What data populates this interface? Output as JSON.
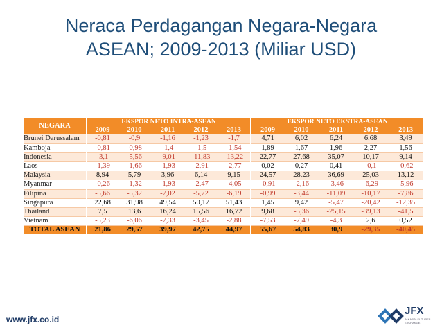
{
  "title": {
    "line1": "Neraca Perdagangan Negara-Negara",
    "line2": "ASEAN; 2009-2013 (Miliar USD)"
  },
  "table": {
    "header": {
      "negara": "NEGARA",
      "group_intra": "EKSPOR NETO INTRA-ASEAN",
      "group_extra": "EKSPOR NETO EKSTRA-ASEAN",
      "years_intra": [
        "2009",
        "2010",
        "2011",
        "2012",
        "2013"
      ],
      "years_extra": [
        "2009",
        "2010",
        "2011",
        "2012",
        "2013"
      ]
    },
    "rows": [
      {
        "country": "Brunei Darussalam",
        "intra": [
          "-0,81",
          "-0,9",
          "-1,16",
          "-1,23",
          "-1,7"
        ],
        "extra": [
          "4,71",
          "6,02",
          "6,24",
          "6,68",
          "3,49"
        ]
      },
      {
        "country": "Kamboja",
        "intra": [
          "-0,81",
          "-0,98",
          "-1,4",
          "-1,5",
          "-1,54"
        ],
        "extra": [
          "1,89",
          "1,67",
          "1,96",
          "2,27",
          "1,56"
        ]
      },
      {
        "country": "Indonesia",
        "intra": [
          "-3,1",
          "-5,56",
          "-9,01",
          "-11,83",
          "-13,22"
        ],
        "extra": [
          "22,77",
          "27,68",
          "35,07",
          "10,17",
          "9,14"
        ]
      },
      {
        "country": "Laos",
        "intra": [
          "-1,39",
          "-1,66",
          "-1,93",
          "-2,91",
          "-2,77"
        ],
        "extra": [
          "0,02",
          "0,27",
          "0,41",
          "-0,1",
          "-0,62"
        ]
      },
      {
        "country": "Malaysia",
        "intra": [
          "8,94",
          "5,79",
          "3,96",
          "6,14",
          "9,15"
        ],
        "extra": [
          "24,57",
          "28,23",
          "36,69",
          "25,03",
          "13,12"
        ]
      },
      {
        "country": "Myanmar",
        "intra": [
          "-0,26",
          "-1,32",
          "-1,93",
          "-2,47",
          "-4,05"
        ],
        "extra": [
          "-0,91",
          "-2,16",
          "-3,46",
          "-6,29",
          "-5,96"
        ]
      },
      {
        "country": "Filipina",
        "intra": [
          "-5,66",
          "-5,32",
          "-7,02",
          "-5,72",
          "-6,19"
        ],
        "extra": [
          "-0,99",
          "-3,44",
          "-11,09",
          "-10,17",
          "-7,86"
        ]
      },
      {
        "country": "Singapura",
        "intra": [
          "22,68",
          "31,98",
          "49,54",
          "50,17",
          "51,43"
        ],
        "extra": [
          "1,45",
          "9,42",
          "-5,47",
          "-20,42",
          "-12,35"
        ]
      },
      {
        "country": "Thailand",
        "intra": [
          "7,5",
          "13,6",
          "16,24",
          "15,56",
          "16,72"
        ],
        "extra": [
          "9,68",
          "-5,36",
          "-25,15",
          "-39,13",
          "-41,5"
        ]
      },
      {
        "country": "Vietnam",
        "intra": [
          "-5,23",
          "-6,06",
          "-7,33",
          "-3,45",
          "-2,88"
        ],
        "extra": [
          "-7,53",
          "-7,49",
          "-4,3",
          "2,6",
          "0,52"
        ]
      }
    ],
    "total": {
      "country": "TOTAL ASEAN",
      "intra": [
        "21,86",
        "29,57",
        "39,97",
        "42,75",
        "44,97"
      ],
      "extra": [
        "55,67",
        "54,83",
        "30,9",
        "-29,35",
        "-40,45"
      ]
    }
  },
  "footer": {
    "url": "www.jfx.co.id",
    "logo_text": "JFX",
    "logo_sub": "JAKARTA FUTURES EXCHANGE"
  },
  "colors": {
    "title": "#1f4e79",
    "header_bg": "#f28c28",
    "stripe": "#fde9d9",
    "negative": "#c0392b"
  }
}
